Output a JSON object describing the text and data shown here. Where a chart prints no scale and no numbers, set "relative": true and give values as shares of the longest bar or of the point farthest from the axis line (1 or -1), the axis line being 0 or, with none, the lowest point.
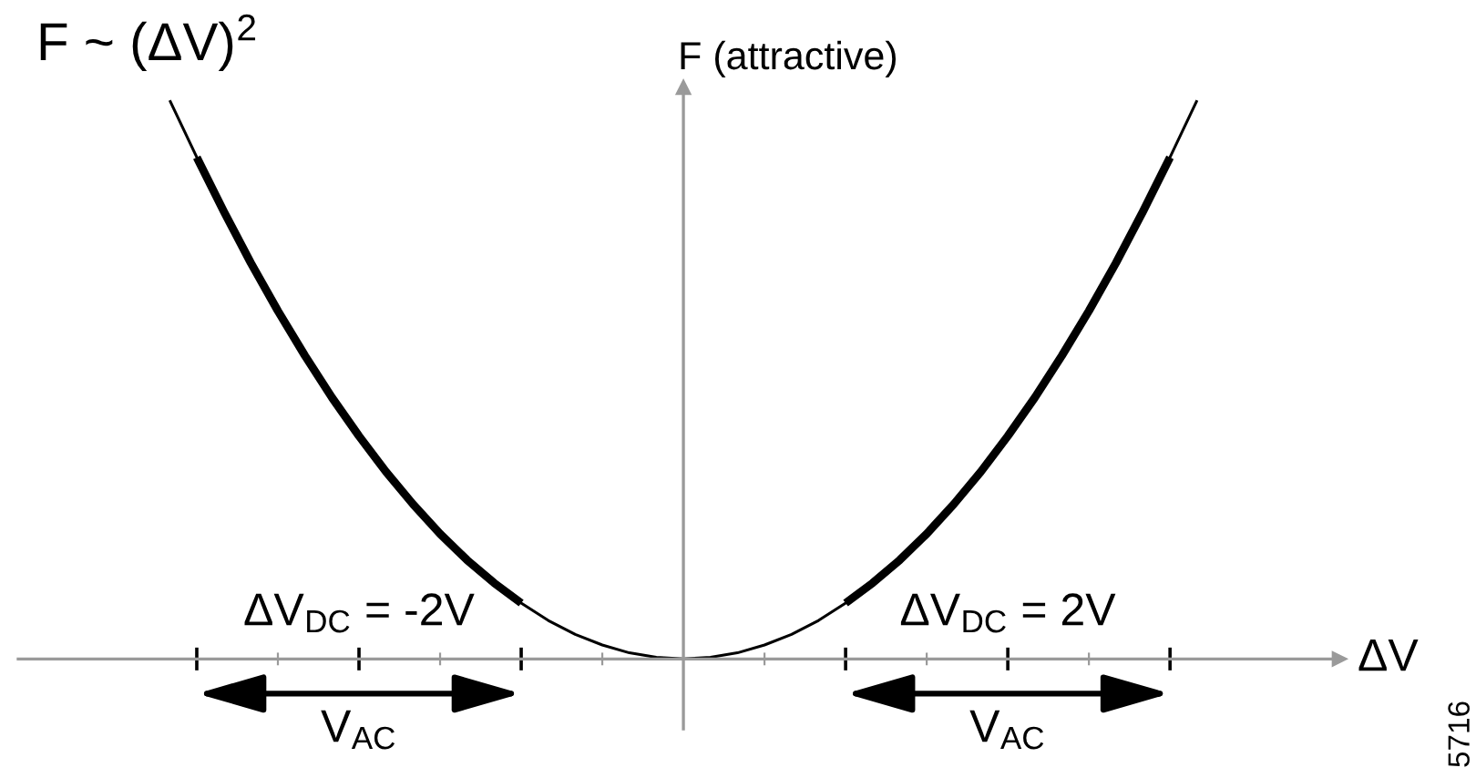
{
  "chart_data": {
    "type": "line",
    "title": "F ~ (ΔV)$^{2}$",
    "xlabel": "ΔV",
    "ylabel": "F (attractive)",
    "relative": true,
    "categories": [
      null,
      null,
      null,
      null,
      null,
      null,
      null,
      null,
      null,
      null,
      null,
      null,
      null,
      null,
      null,
      null,
      null,
      null,
      null,
      null,
      null,
      null,
      null,
      null,
      null,
      null,
      null,
      null,
      null,
      null,
      null,
      null,
      null,
      null,
      null,
      null,
      null,
      null,
      null
    ],
    "series": [
      {
        "color": "#000000",
        "values": [
          1,
          0.898,
          0.801,
          0.709,
          0.623,
          0.543,
          0.468,
          0.399,
          0.335,
          0.277,
          0.224,
          0.177,
          0.136,
          0.1,
          0.069,
          0.044,
          0.025,
          0.011,
          0.003,
          0,
          0.003,
          0.011,
          0.025,
          0.044,
          0.069,
          0.1,
          0.136,
          0.177,
          0.224,
          0.277,
          0.335,
          0.399,
          0.468,
          0.543,
          0.623,
          0.709,
          0.801,
          0.898,
          1
        ]
      },
      {
        "color": "#000000",
        "values": [
          null,
          0.898,
          0.801,
          0.709,
          0.623,
          0.543,
          0.468,
          0.399,
          0.335,
          0.277,
          0.224,
          0.177,
          0.136,
          0.1,
          null,
          null,
          null,
          null,
          null,
          null,
          null,
          null,
          null,
          null,
          null,
          null,
          null,
          null,
          null,
          null,
          null,
          null,
          null,
          null,
          null,
          null,
          null,
          null,
          null
        ]
      },
      {
        "color": "#000000",
        "values": [
          null,
          null,
          null,
          null,
          null,
          null,
          null,
          null,
          null,
          null,
          null,
          null,
          null,
          null,
          null,
          null,
          null,
          null,
          null,
          null,
          null,
          null,
          null,
          null,
          null,
          0.1,
          0.136,
          0.177,
          0.224,
          0.277,
          0.335,
          0.399,
          0.468,
          0.543,
          0.623,
          0.709,
          0.801,
          0.898,
          null
        ]
      }
    ],
    "annotations": [
      "ΔV$_{DC}$ = -2V",
      "V$_{AC}$",
      "ΔV$_{DC}$ = 2V",
      "V$_{AC}$",
      "5716"
    ]
  }
}
